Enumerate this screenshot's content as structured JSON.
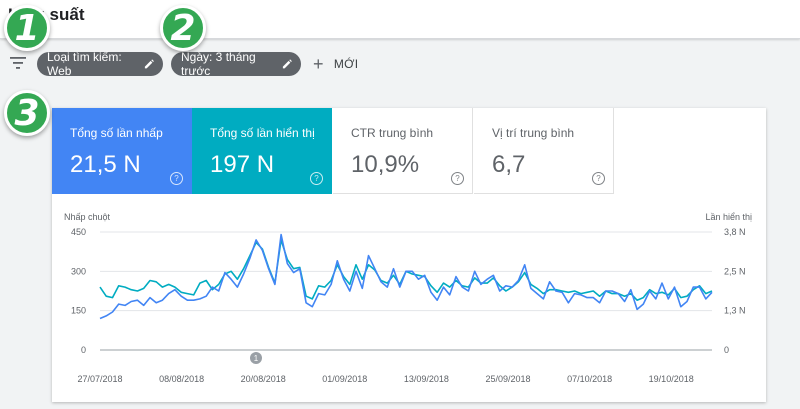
{
  "header": {
    "title": "Hiệu suất"
  },
  "filters": {
    "search_type_chip": "Loại tìm kiếm: Web",
    "date_chip": "Ngày: 3 tháng trước",
    "new_button": "MỚI"
  },
  "badges": [
    "1",
    "2",
    "3"
  ],
  "metrics": [
    {
      "label": "Tổng số lần nhấp",
      "value": "21,5 N",
      "state": "active",
      "color": "#4285f4"
    },
    {
      "label": "Tổng số lần hiển thị",
      "value": "197 N",
      "state": "active",
      "color": "#00acc1"
    },
    {
      "label": "CTR trung bình",
      "value": "10,9%",
      "state": "inactive"
    },
    {
      "label": "Vị trí trung bình",
      "value": "6,7",
      "state": "inactive"
    }
  ],
  "help_glyph": "?",
  "annotation_marker": "1",
  "colors": {
    "clicks": "#4285f4",
    "impressions": "#00acc1",
    "chip": "#5f6368",
    "badge": "#34a853"
  },
  "icons": [
    "filter-icon",
    "pencil-icon",
    "plus-icon",
    "help-icon"
  ],
  "chart_data": {
    "type": "line",
    "ylabel_left": "Nhấp chuột",
    "ylabel_right": "Lần hiển thị",
    "yticks_left": [
      "450",
      "300",
      "150",
      "0"
    ],
    "yticks_right": [
      "3,8 N",
      "2,5 N",
      "1,3 N",
      "0"
    ],
    "ylim_left": [
      0,
      450
    ],
    "ylim_right": [
      0,
      3800
    ],
    "xticks": [
      "27/07/2018",
      "08/08/2018",
      "20/08/2018",
      "01/09/2018",
      "13/09/2018",
      "25/09/2018",
      "07/10/2018",
      "19/10/2018"
    ],
    "grid": true,
    "series": [
      {
        "name": "Tổng số lần nhấp",
        "color": "#4285f4",
        "axis": "left",
        "values": [
          120,
          130,
          145,
          175,
          170,
          185,
          190,
          170,
          200,
          180,
          190,
          215,
          230,
          205,
          190,
          190,
          195,
          205,
          240,
          225,
          295,
          270,
          240,
          290,
          350,
          420,
          380,
          310,
          250,
          440,
          330,
          295,
          310,
          180,
          165,
          215,
          210,
          250,
          340,
          270,
          225,
          300,
          235,
          360,
          310,
          260,
          240,
          310,
          240,
          300,
          300,
          270,
          285,
          220,
          190,
          240,
          210,
          280,
          240,
          225,
          300,
          250,
          270,
          285,
          225,
          245,
          240,
          265,
          325,
          235,
          215,
          195,
          260,
          225,
          220,
          180,
          215,
          210,
          200,
          200,
          180,
          225,
          225,
          215,
          185,
          230,
          155,
          175,
          225,
          195,
          255,
          195,
          240,
          165,
          185,
          240,
          240,
          195,
          220
        ]
      },
      {
        "name": "Tổng số lần hiển thị",
        "color": "#00acc1",
        "axis": "left",
        "values": [
          240,
          205,
          200,
          245,
          240,
          230,
          225,
          235,
          265,
          260,
          240,
          250,
          240,
          220,
          215,
          210,
          255,
          265,
          230,
          250,
          290,
          300,
          270,
          310,
          360,
          410,
          385,
          315,
          255,
          420,
          345,
          310,
          315,
          205,
          195,
          245,
          240,
          265,
          325,
          280,
          250,
          325,
          270,
          325,
          305,
          265,
          255,
          285,
          250,
          300,
          290,
          285,
          280,
          245,
          220,
          255,
          240,
          265,
          245,
          240,
          275,
          255,
          255,
          275,
          245,
          225,
          240,
          260,
          295,
          250,
          235,
          215,
          230,
          230,
          225,
          220,
          225,
          215,
          220,
          225,
          205,
          225,
          215,
          215,
          205,
          215,
          190,
          200,
          230,
          215,
          220,
          210,
          235,
          200,
          205,
          230,
          245,
          215,
          225
        ]
      }
    ]
  }
}
